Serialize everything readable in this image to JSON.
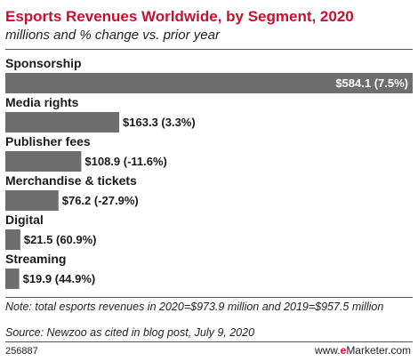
{
  "header": {
    "title": "Esports Revenues Worldwide, by Segment, 2020",
    "subtitle": "millions and % change vs. prior year"
  },
  "chart_data": {
    "type": "bar",
    "orientation": "horizontal",
    "title": "Esports Revenues Worldwide, by Segment, 2020",
    "subtitle": "millions and % change vs. prior year",
    "xlabel": "",
    "ylabel": "",
    "xlim": [
      0,
      584.1
    ],
    "grid": false,
    "legend": "none",
    "bar_color": "#6e6e6e",
    "categories": [
      "Sponsorship",
      "Media rights",
      "Publisher fees",
      "Merchandise & tickets",
      "Digital",
      "Streaming"
    ],
    "values": [
      584.1,
      163.3,
      108.9,
      76.2,
      21.5,
      19.9
    ],
    "labels": [
      "$584.1 (7.5%)",
      "$163.3 (3.3%)",
      "$108.9 (-11.6%)",
      "$76.2 (-27.9%)",
      "$21.5 (60.9%)",
      "$19.9 (44.9%)"
    ]
  },
  "footer": {
    "note": "Note: total esports revenues in 2020=$973.9 million and 2019=$957.5 million",
    "source": "Source: Newzoo as cited in blog post, July 9, 2020",
    "chart_id": "256887",
    "brand_prefix": "www.",
    "brand_e": "e",
    "brand_suffix": "Marketer.com"
  },
  "colors": {
    "title": "#c8102e",
    "bar": "#6e6e6e",
    "brand_accent": "#c8102e"
  }
}
